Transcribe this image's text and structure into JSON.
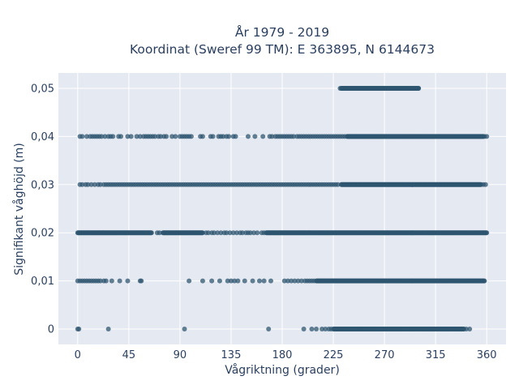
{
  "chart_data": {
    "type": "scatter",
    "title_lines": [
      "År 1979 - 2019",
      "Koordinat (Sweref 99 TM): E 363895, N 6144673"
    ],
    "xlabel": "Vågriktning (grader)",
    "ylabel": "Signifikant våghöjd (m)",
    "xlim": [
      -17,
      377
    ],
    "ylim": [
      -0.0032,
      0.0532
    ],
    "x_ticks": [
      0,
      45,
      90,
      135,
      180,
      225,
      270,
      315,
      360
    ],
    "x_tick_labels": [
      "0",
      "45",
      "90",
      "135",
      "180",
      "225",
      "270",
      "315",
      "360"
    ],
    "y_ticks": [
      0,
      0.01,
      0.02,
      0.03,
      0.04,
      0.05
    ],
    "y_tick_labels": [
      "0",
      "0,01",
      "0,02",
      "0,03",
      "0,04",
      "0,05"
    ],
    "grid": true,
    "marker_color": "#2f5570",
    "plot_bg": "#e5e9f2",
    "series": [
      {
        "values_at_y": [
          {
            "y": 0.05,
            "dense_ranges": [
              [
                232,
                300
              ]
            ],
            "x": [
              231,
              233,
              300
            ]
          },
          {
            "y": 0.04,
            "dense_ranges": [
              [
                237,
                357
              ]
            ],
            "x": [
              2,
              4,
              8,
              11,
              13,
              15,
              17,
              19,
              21,
              24,
              27,
              29,
              31,
              36,
              38,
              44,
              47,
              52,
              55,
              58,
              60,
              62,
              64,
              66,
              68,
              71,
              73,
              76,
              78,
              83,
              86,
              90,
              92,
              94,
              96,
              98,
              100,
              108,
              110,
              117,
              119,
              124,
              126,
              128,
              131,
              133,
              137,
              139,
              150,
              156,
              163,
              169,
              171,
              174,
              176,
              178,
              180,
              182,
              184,
              186,
              188,
              190,
              193,
              195,
              197,
              199,
              201,
              203,
              205,
              207,
              209,
              211,
              213,
              215,
              217,
              219,
              221,
              223,
              225,
              227,
              229,
              231,
              233,
              235,
              358,
              360
            ]
          },
          {
            "y": 0.03,
            "dense_ranges": [
              [
                232,
                355
              ]
            ],
            "x": [
              2,
              4,
              7,
              9,
              12,
              15,
              18,
              20,
              23,
              25,
              27,
              29,
              31,
              33,
              35,
              37,
              39,
              41,
              43,
              45,
              47,
              49,
              51,
              53,
              55,
              57,
              59,
              61,
              63,
              65,
              67,
              69,
              71,
              73,
              75,
              77,
              79,
              81,
              83,
              85,
              87,
              89,
              91,
              93,
              95,
              97,
              99,
              101,
              103,
              105,
              107,
              109,
              111,
              113,
              115,
              117,
              119,
              121,
              123,
              125,
              127,
              129,
              131,
              133,
              135,
              137,
              139,
              141,
              143,
              145,
              147,
              149,
              151,
              153,
              155,
              157,
              159,
              161,
              163,
              165,
              167,
              169,
              171,
              173,
              175,
              177,
              179,
              181,
              183,
              185,
              187,
              189,
              191,
              193,
              195,
              197,
              199,
              201,
              203,
              205,
              207,
              209,
              211,
              213,
              215,
              217,
              219,
              221,
              223,
              225,
              227,
              229,
              357,
              359
            ]
          },
          {
            "y": 0.02,
            "dense_ranges": [
              [
                0,
                65
              ],
              [
                75,
                110
              ],
              [
                166,
                360
              ]
            ],
            "x": [
              70,
              72,
              113,
              115,
              118,
              120,
              123,
              126,
              129,
              131,
              134,
              137,
              140,
              143,
              145,
              148,
              150,
              152,
              155,
              158,
              162,
              164
            ]
          },
          {
            "y": 0.01,
            "dense_ranges": [
              [
                210,
                358
              ]
            ],
            "x": [
              0,
              2,
              4,
              6,
              8,
              10,
              12,
              14,
              16,
              18,
              20,
              23,
              25,
              30,
              37,
              44,
              55,
              56,
              98,
              110,
              118,
              125,
              132,
              135,
              138,
              141,
              147,
              154,
              160,
              164,
              170,
              182,
              185,
              188,
              191,
              194,
              197,
              200,
              202,
              204,
              206,
              208
            ]
          },
          {
            "y": 0.0,
            "dense_ranges": [
              [
                225,
                340
              ]
            ],
            "x": [
              0,
              1,
              27,
              94,
              168,
              199,
              206,
              210,
              215,
              218,
              221,
              223,
              342,
              345
            ]
          }
        ]
      }
    ]
  }
}
